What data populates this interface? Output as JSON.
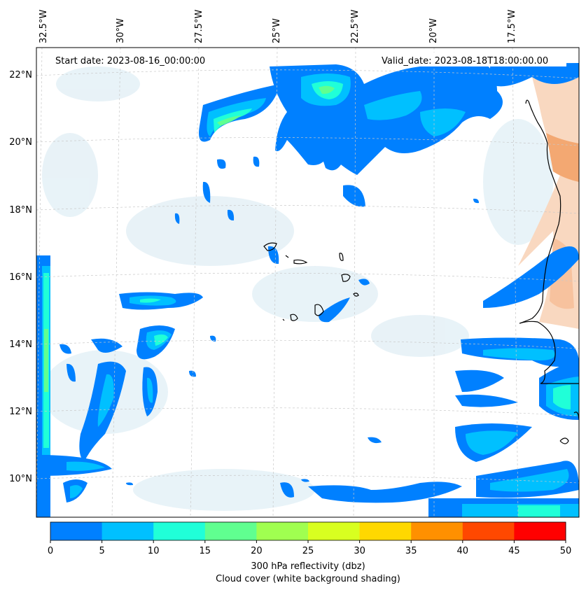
{
  "annotations": {
    "start_date": "Start date: 2023-08-16_00:00:00",
    "valid_date": "Valid_date: 2023-08-18T18:00:00.00"
  },
  "longitude_labels": [
    "32.5°W",
    "30°W",
    "27.5°W",
    "25°W",
    "22.5°W",
    "20°W",
    "17.5°W"
  ],
  "latitude_labels": [
    "22°N",
    "20°N",
    "18°N",
    "16°N",
    "14°N",
    "12°N",
    "10°N"
  ],
  "colorbar": {
    "ticks": [
      "0",
      "5",
      "10",
      "15",
      "20",
      "25",
      "30",
      "35",
      "40",
      "45",
      "50"
    ],
    "colors": [
      "#0080ff",
      "#00c0ff",
      "#20ffd8",
      "#60ff90",
      "#a0ff50",
      "#d8ff20",
      "#ffd800",
      "#ff9000",
      "#ff4800",
      "#ff0000"
    ],
    "label_line1": "300 hPa reflectivity (dbz)",
    "label_line2": "Cloud cover (white background shading)"
  },
  "colors": {
    "coast": "#000000",
    "grid": "#c8c8c8",
    "cloud_shade": "#d6e9f2",
    "warm_shade": "#f7c8a8"
  }
}
